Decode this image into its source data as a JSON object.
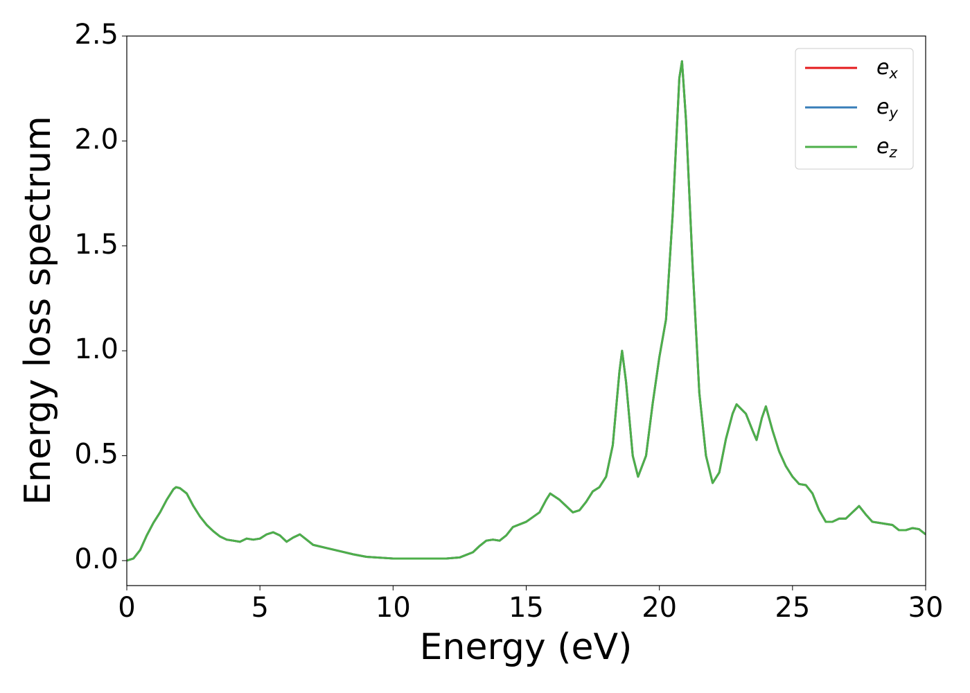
{
  "chart_data": {
    "type": "line",
    "xlabel": "Energy (eV)",
    "ylabel": "Energy loss spectrum",
    "x": [
      0,
      0.25,
      0.5,
      0.75,
      1.0,
      1.25,
      1.5,
      1.75,
      1.85,
      2.0,
      2.25,
      2.5,
      2.75,
      3.0,
      3.25,
      3.5,
      3.75,
      4.0,
      4.25,
      4.5,
      4.75,
      5.0,
      5.25,
      5.5,
      5.75,
      6.0,
      6.25,
      6.5,
      6.75,
      7.0,
      7.5,
      8.0,
      8.5,
      9.0,
      10,
      11,
      12,
      12.5,
      13.0,
      13.25,
      13.5,
      13.75,
      14.0,
      14.25,
      14.5,
      15.0,
      15.5,
      15.75,
      15.9,
      16.25,
      16.5,
      16.75,
      17.0,
      17.25,
      17.5,
      17.75,
      18.0,
      18.25,
      18.5,
      18.6,
      18.75,
      19.0,
      19.2,
      19.5,
      19.75,
      20.0,
      20.25,
      20.5,
      20.75,
      20.85,
      21.0,
      21.25,
      21.5,
      21.75,
      22.0,
      22.25,
      22.5,
      22.75,
      22.9,
      23.25,
      23.5,
      23.65,
      23.85,
      24.0,
      24.25,
      24.5,
      24.75,
      25.0,
      25.25,
      25.5,
      25.75,
      26.0,
      26.25,
      26.5,
      26.75,
      27.0,
      27.25,
      27.5,
      27.75,
      28.0,
      28.5,
      28.75,
      29.0,
      29.25,
      29.5,
      29.75,
      30.0
    ],
    "series": [
      {
        "name": "e_x",
        "color": "#e41a1c",
        "values": [
          0.0,
          0.01,
          0.05,
          0.12,
          0.18,
          0.23,
          0.29,
          0.34,
          0.35,
          0.345,
          0.32,
          0.26,
          0.21,
          0.17,
          0.14,
          0.115,
          0.1,
          0.095,
          0.09,
          0.105,
          0.1,
          0.105,
          0.125,
          0.135,
          0.12,
          0.09,
          0.11,
          0.125,
          0.1,
          0.075,
          0.06,
          0.045,
          0.03,
          0.018,
          0.01,
          0.01,
          0.01,
          0.015,
          0.04,
          0.07,
          0.095,
          0.1,
          0.095,
          0.12,
          0.16,
          0.185,
          0.23,
          0.29,
          0.32,
          0.29,
          0.26,
          0.23,
          0.24,
          0.28,
          0.33,
          0.35,
          0.4,
          0.55,
          0.9,
          1.0,
          0.85,
          0.5,
          0.4,
          0.5,
          0.75,
          0.97,
          1.15,
          1.65,
          2.3,
          2.38,
          2.1,
          1.4,
          0.8,
          0.5,
          0.37,
          0.42,
          0.58,
          0.7,
          0.745,
          0.7,
          0.62,
          0.575,
          0.68,
          0.735,
          0.62,
          0.52,
          0.45,
          0.4,
          0.365,
          0.36,
          0.32,
          0.24,
          0.185,
          0.185,
          0.2,
          0.2,
          0.23,
          0.26,
          0.22,
          0.185,
          0.175,
          0.17,
          0.145,
          0.145,
          0.155,
          0.15,
          0.125
        ]
      },
      {
        "name": "e_y",
        "color": "#377eb8",
        "values": [
          0.0,
          0.01,
          0.05,
          0.12,
          0.18,
          0.23,
          0.29,
          0.34,
          0.35,
          0.345,
          0.32,
          0.26,
          0.21,
          0.17,
          0.14,
          0.115,
          0.1,
          0.095,
          0.09,
          0.105,
          0.1,
          0.105,
          0.125,
          0.135,
          0.12,
          0.09,
          0.11,
          0.125,
          0.1,
          0.075,
          0.06,
          0.045,
          0.03,
          0.018,
          0.01,
          0.01,
          0.01,
          0.015,
          0.04,
          0.07,
          0.095,
          0.1,
          0.095,
          0.12,
          0.16,
          0.185,
          0.23,
          0.29,
          0.32,
          0.29,
          0.26,
          0.23,
          0.24,
          0.28,
          0.33,
          0.35,
          0.4,
          0.55,
          0.9,
          1.0,
          0.85,
          0.5,
          0.4,
          0.5,
          0.75,
          0.97,
          1.15,
          1.65,
          2.3,
          2.38,
          2.1,
          1.4,
          0.8,
          0.5,
          0.37,
          0.42,
          0.58,
          0.7,
          0.745,
          0.7,
          0.62,
          0.575,
          0.68,
          0.735,
          0.62,
          0.52,
          0.45,
          0.4,
          0.365,
          0.36,
          0.32,
          0.24,
          0.185,
          0.185,
          0.2,
          0.2,
          0.23,
          0.26,
          0.22,
          0.185,
          0.175,
          0.17,
          0.145,
          0.145,
          0.155,
          0.15,
          0.125
        ]
      },
      {
        "name": "e_z",
        "color": "#4daf4a",
        "values": [
          0.0,
          0.01,
          0.05,
          0.12,
          0.18,
          0.23,
          0.29,
          0.34,
          0.35,
          0.345,
          0.32,
          0.26,
          0.21,
          0.17,
          0.14,
          0.115,
          0.1,
          0.095,
          0.09,
          0.105,
          0.1,
          0.105,
          0.125,
          0.135,
          0.12,
          0.09,
          0.11,
          0.125,
          0.1,
          0.075,
          0.06,
          0.045,
          0.03,
          0.018,
          0.01,
          0.01,
          0.01,
          0.015,
          0.04,
          0.07,
          0.095,
          0.1,
          0.095,
          0.12,
          0.16,
          0.185,
          0.23,
          0.29,
          0.32,
          0.29,
          0.26,
          0.23,
          0.24,
          0.28,
          0.33,
          0.35,
          0.4,
          0.55,
          0.9,
          1.0,
          0.85,
          0.5,
          0.4,
          0.5,
          0.75,
          0.97,
          1.15,
          1.65,
          2.3,
          2.38,
          2.1,
          1.4,
          0.8,
          0.5,
          0.37,
          0.42,
          0.58,
          0.7,
          0.745,
          0.7,
          0.62,
          0.575,
          0.68,
          0.735,
          0.62,
          0.52,
          0.45,
          0.4,
          0.365,
          0.36,
          0.32,
          0.24,
          0.185,
          0.185,
          0.2,
          0.2,
          0.23,
          0.26,
          0.22,
          0.185,
          0.175,
          0.17,
          0.145,
          0.145,
          0.155,
          0.15,
          0.125
        ]
      }
    ],
    "xlim": [
      0,
      30
    ],
    "xticks": [
      0,
      5,
      10,
      15,
      20,
      25,
      30
    ],
    "ylim": [
      -0.119,
      2.5
    ],
    "yticks": [
      {
        "value": 0,
        "label": "0.0"
      },
      {
        "value": 0.5,
        "label": "0.5"
      },
      {
        "value": 1,
        "label": "1.0"
      },
      {
        "value": 1.5,
        "label": "1.5"
      },
      {
        "value": 2,
        "label": "2.0"
      },
      {
        "value": 2.5,
        "label": "2.5"
      }
    ],
    "grid": false,
    "legend": "upper right"
  }
}
